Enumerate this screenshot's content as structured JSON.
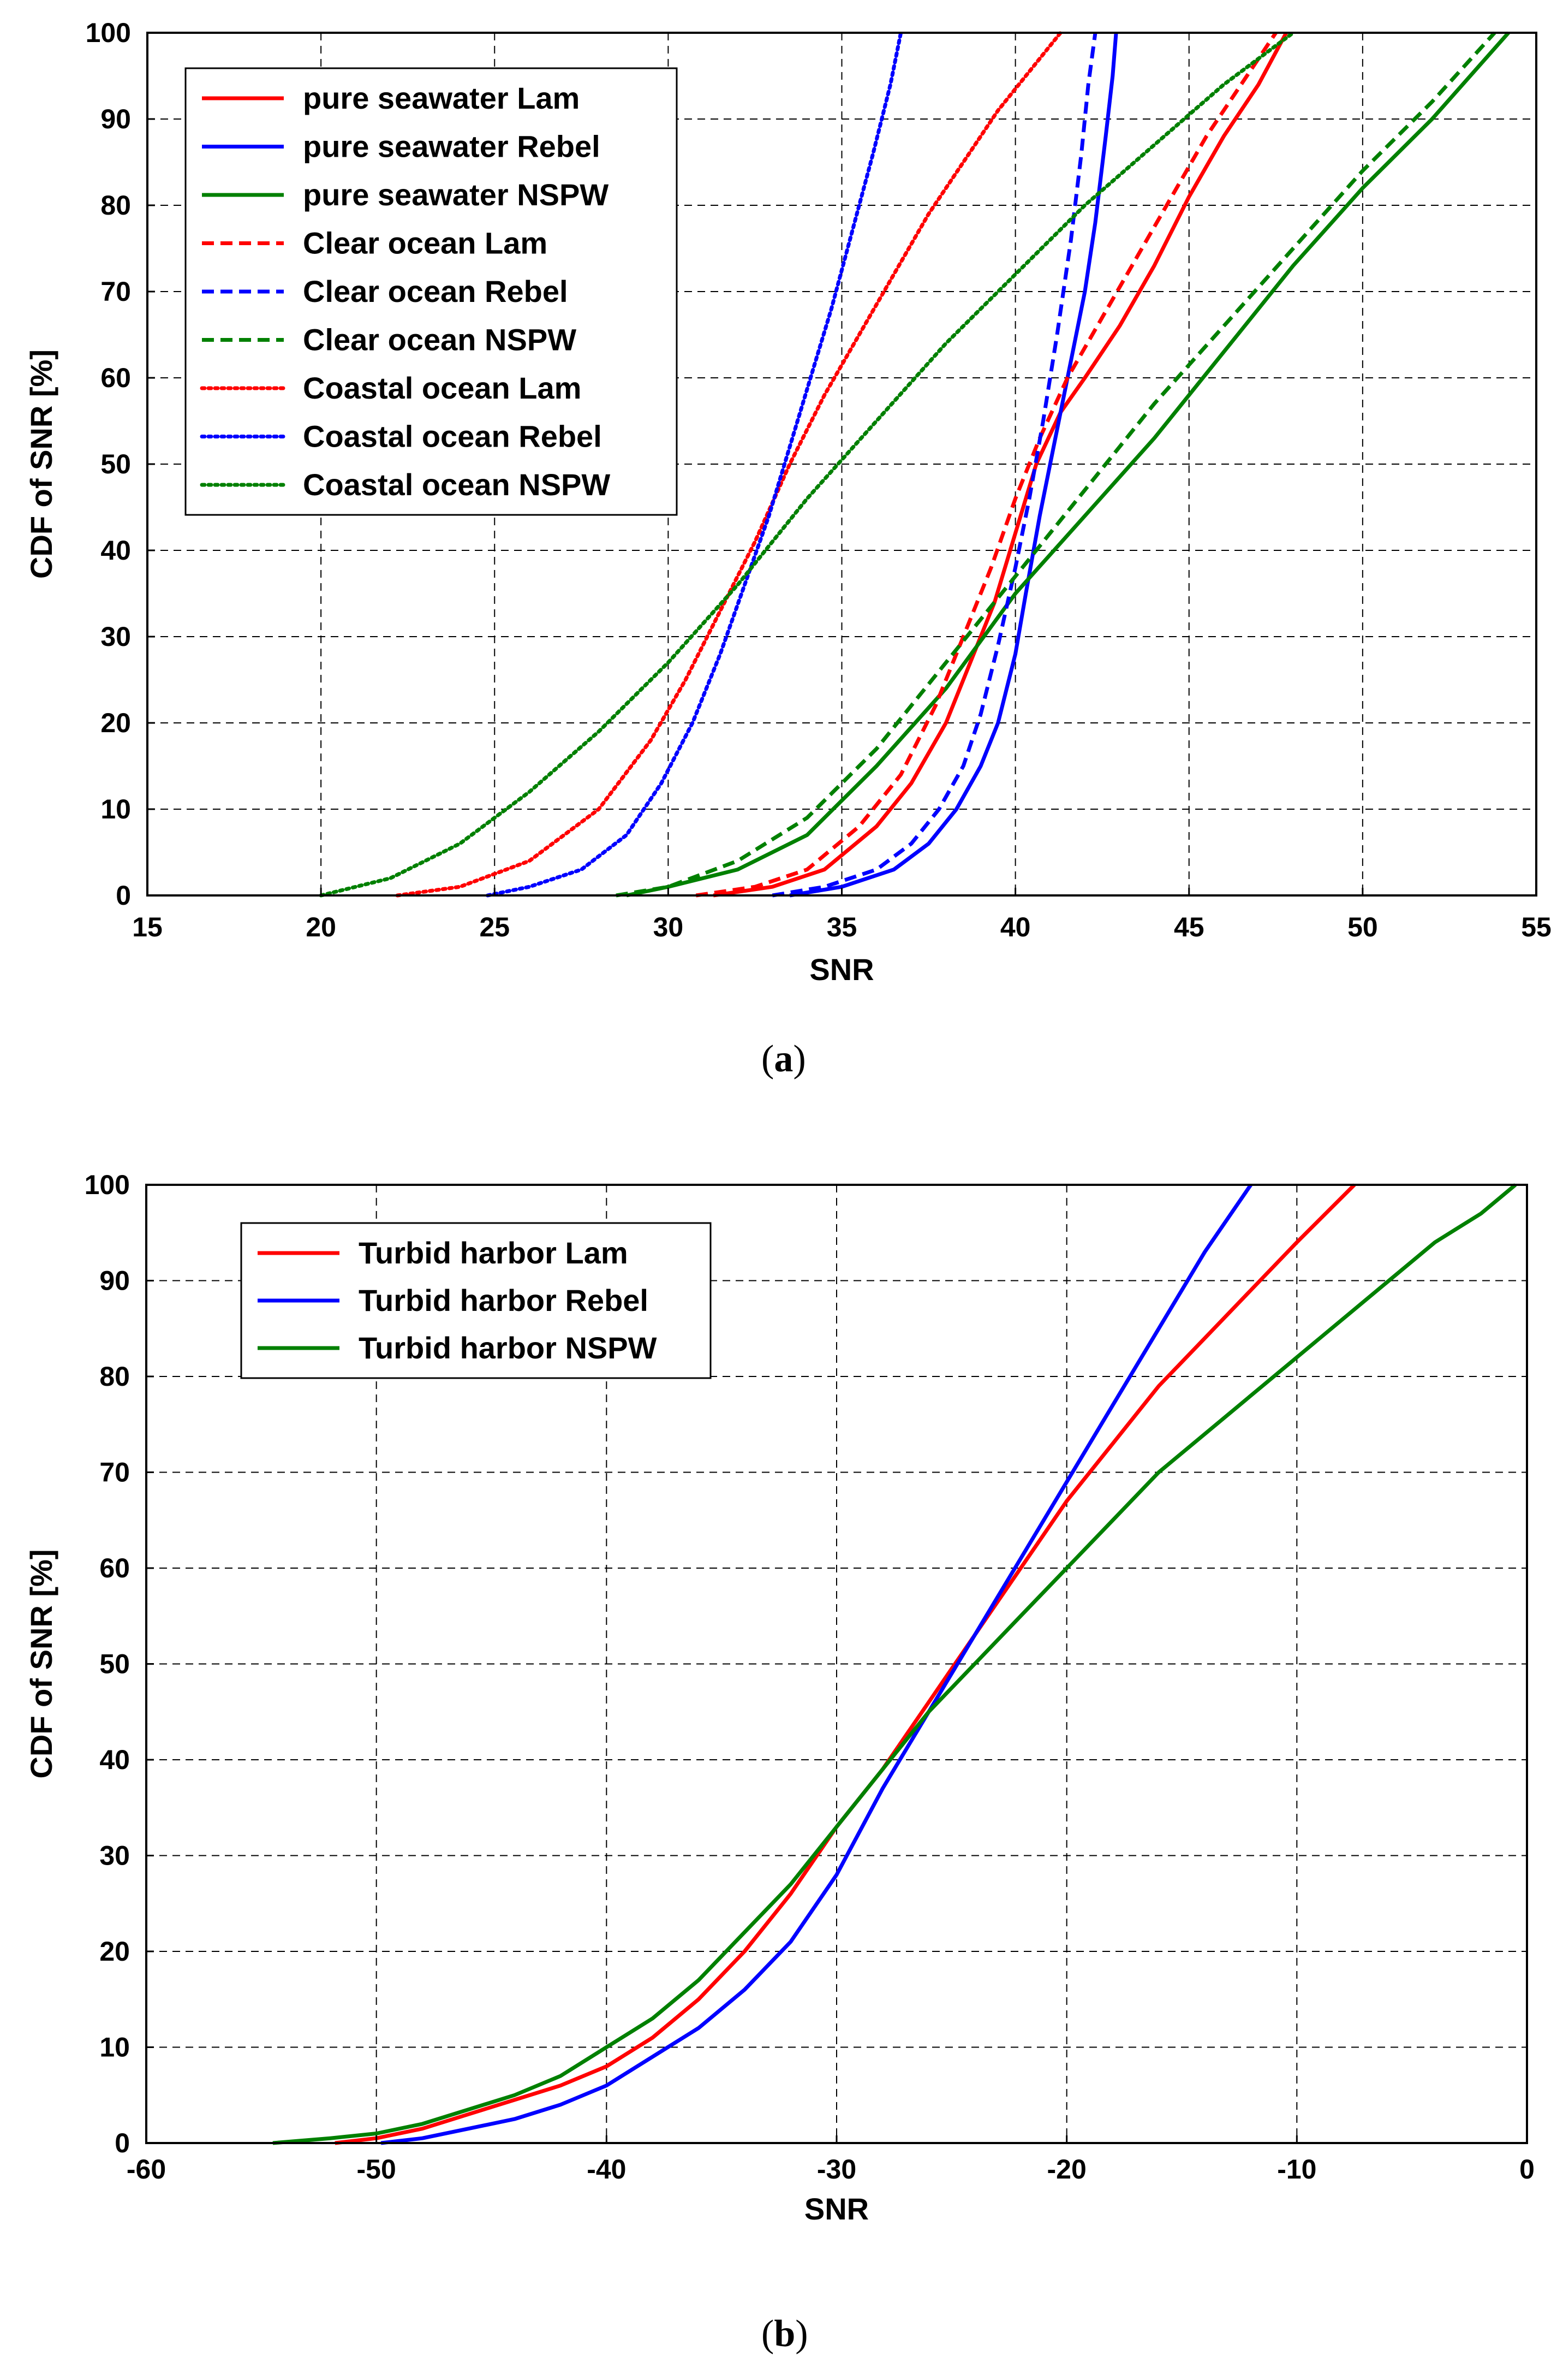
{
  "chart_data": [
    {
      "type": "line",
      "panel": "a",
      "caption": "(a)",
      "caption_open": "(",
      "caption_letter": "a",
      "caption_close": ")",
      "xlabel": "SNR",
      "ylabel": "CDF of SNR [%]",
      "xlim": [
        15,
        55
      ],
      "ylim": [
        0,
        100
      ],
      "xticks": [
        15,
        20,
        25,
        30,
        35,
        40,
        45,
        50,
        55
      ],
      "yticks": [
        0,
        10,
        20,
        30,
        40,
        50,
        60,
        70,
        80,
        90,
        100
      ],
      "grid": true,
      "legend_position": "top-left",
      "series": [
        {
          "name": "pure seawater Lam",
          "color": "#ff0000",
          "style": "solid",
          "x": [
            31.3,
            33,
            34.5,
            36,
            37,
            38,
            38.7,
            39.4,
            40,
            40.6,
            41.3,
            42,
            43,
            44,
            45,
            46,
            47,
            47.8
          ],
          "y": [
            0,
            1,
            3,
            8,
            13,
            20,
            27,
            34,
            42,
            50,
            56,
            60,
            66,
            73,
            81,
            88,
            94,
            100
          ]
        },
        {
          "name": "pure seawater Rebel",
          "color": "#0000ff",
          "style": "solid",
          "x": [
            33.5,
            35,
            36.5,
            37.5,
            38.3,
            39,
            39.5,
            40,
            40.3,
            40.7,
            41.1,
            41.5,
            42,
            42.3,
            42.6,
            42.8,
            42.9
          ],
          "y": [
            0,
            1,
            3,
            6,
            10,
            15,
            20,
            28,
            35,
            44,
            52,
            60,
            70,
            78,
            88,
            95,
            100
          ]
        },
        {
          "name": "pure seawater NSPW",
          "color": "#008000",
          "style": "solid",
          "x": [
            28.8,
            30,
            32,
            34,
            36,
            38,
            40,
            42,
            44,
            46,
            48,
            50,
            52,
            54.2
          ],
          "y": [
            0,
            1,
            3,
            7,
            15,
            24,
            35,
            44,
            53,
            63,
            73,
            82,
            90,
            100
          ]
        },
        {
          "name": "Clear ocean Lam",
          "color": "#ff0000",
          "style": "dashed",
          "x": [
            30.8,
            32.5,
            34,
            35.5,
            36.7,
            37.7,
            38.5,
            39.3,
            40,
            40.7,
            41.5,
            42.5,
            43.5,
            44.5,
            45.5,
            46.5,
            47.5
          ],
          "y": [
            0,
            1,
            3,
            8,
            14,
            22,
            30,
            38,
            46,
            53,
            60,
            67,
            74,
            81,
            88,
            94,
            100
          ]
        },
        {
          "name": "Clear ocean Rebel",
          "color": "#0000ff",
          "style": "dashed",
          "x": [
            33,
            34.5,
            36,
            37,
            37.8,
            38.5,
            39,
            39.5,
            40,
            40.4,
            40.8,
            41.2,
            41.6,
            41.9,
            42.1,
            42.3
          ],
          "y": [
            0,
            1,
            3,
            6,
            10,
            15,
            21,
            29,
            38,
            46,
            55,
            65,
            76,
            86,
            94,
            100
          ]
        },
        {
          "name": "Clear ocean NSPW",
          "color": "#008000",
          "style": "dashed",
          "x": [
            28.5,
            30,
            32,
            34,
            36,
            38,
            40,
            42,
            44,
            46,
            48,
            50,
            52,
            53.8
          ],
          "y": [
            0,
            1,
            4,
            9,
            17,
            27,
            37,
            47,
            57,
            66,
            75,
            84,
            92,
            100
          ]
        },
        {
          "name": "Coastal ocean Lam",
          "color": "#ff0000",
          "style": "dotted",
          "x": [
            22.2,
            24,
            26,
            28,
            29.5,
            30.5,
            31.5,
            32.5,
            33.5,
            34.5,
            35.5,
            36.5,
            37.5,
            38.5,
            39.5,
            40.5,
            41.3
          ],
          "y": [
            0,
            1,
            4,
            10,
            18,
            25,
            33,
            41,
            50,
            58,
            65,
            72,
            79,
            85,
            91,
            96,
            100
          ]
        },
        {
          "name": "Coastal ocean Rebel",
          "color": "#0000ff",
          "style": "dotted",
          "x": [
            24.8,
            26,
            27.5,
            28.8,
            29.8,
            30.7,
            31.5,
            32.2,
            32.9,
            33.5,
            34.1,
            34.7,
            35.3,
            35.9,
            36.4,
            36.7
          ],
          "y": [
            0,
            1,
            3,
            7,
            13,
            20,
            28,
            36,
            44,
            52,
            60,
            68,
            77,
            86,
            94,
            100
          ]
        },
        {
          "name": "Coastal ocean NSPW",
          "color": "#008000",
          "style": "dotted",
          "x": [
            20,
            22,
            24,
            26,
            28,
            30,
            32,
            34,
            36,
            38,
            40,
            42,
            44,
            46,
            48
          ],
          "y": [
            0,
            2,
            6,
            12,
            19,
            27,
            36,
            46,
            55,
            64,
            72,
            80,
            87,
            94,
            100
          ]
        }
      ]
    },
    {
      "type": "line",
      "panel": "b",
      "caption": "(b)",
      "caption_open": "(",
      "caption_letter": "b",
      "caption_close": ")",
      "xlabel": "SNR",
      "ylabel": "CDF of SNR [%]",
      "xlim": [
        -60,
        0
      ],
      "ylim": [
        0,
        100
      ],
      "xticks": [
        -60,
        -50,
        -40,
        -30,
        -20,
        -10,
        0
      ],
      "yticks": [
        0,
        10,
        20,
        30,
        40,
        50,
        60,
        70,
        80,
        90,
        100
      ],
      "grid": true,
      "legend_position": "top-left",
      "series": [
        {
          "name": "Turbid harbor Lam",
          "color": "#ff0000",
          "style": "solid",
          "x": [
            -51.8,
            -50,
            -48,
            -46,
            -44,
            -42,
            -40,
            -38,
            -36,
            -34,
            -32,
            -30,
            -28,
            -26,
            -24,
            -22,
            -20,
            -18,
            -16,
            -14,
            -12,
            -10,
            -7.5
          ],
          "y": [
            0,
            0.5,
            1.5,
            3,
            4.5,
            6,
            8,
            11,
            15,
            20,
            26,
            33,
            39,
            46,
            53,
            60,
            67,
            73,
            79,
            84,
            89,
            94,
            100
          ]
        },
        {
          "name": "Turbid harbor Rebel",
          "color": "#0000ff",
          "style": "solid",
          "x": [
            -49.8,
            -48,
            -46,
            -44,
            -42,
            -40,
            -38,
            -36,
            -34,
            -32,
            -30,
            -28,
            -26,
            -24,
            -22,
            -20,
            -18,
            -16,
            -14,
            -12
          ],
          "y": [
            0,
            0.5,
            1.5,
            2.5,
            4,
            6,
            9,
            12,
            16,
            21,
            28,
            37,
            45,
            53,
            61,
            69,
            77,
            85,
            93,
            100
          ]
        },
        {
          "name": "Turbid harbor NSPW",
          "color": "#008000",
          "style": "solid",
          "x": [
            -54.5,
            -52,
            -50,
            -48,
            -46,
            -44,
            -42,
            -40,
            -38,
            -36,
            -34,
            -32,
            -30,
            -28,
            -26,
            -24,
            -22,
            -20,
            -18,
            -16,
            -14,
            -12,
            -10,
            -8,
            -6,
            -4,
            -2,
            -0.5
          ],
          "y": [
            0,
            0.5,
            1,
            2,
            3.5,
            5,
            7,
            10,
            13,
            17,
            22,
            27,
            33,
            39,
            45,
            50,
            55,
            60,
            65,
            70,
            74,
            78,
            82,
            86,
            90,
            94,
            97,
            100
          ]
        }
      ]
    }
  ]
}
